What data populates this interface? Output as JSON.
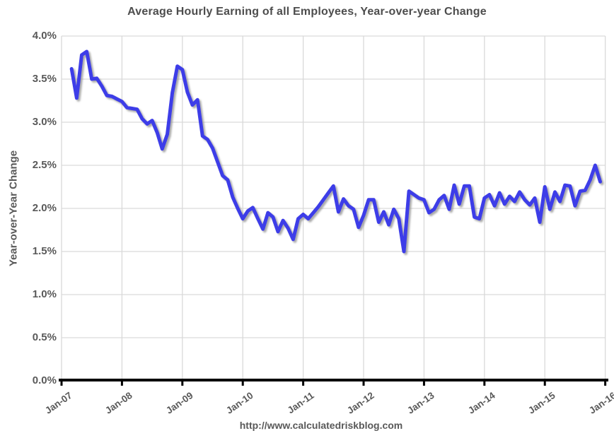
{
  "chart_data": {
    "type": "line",
    "title": "Average Hourly Earning of all Employees, Year-over-year Change",
    "ylabel": "Year-over-Year Change",
    "footer_url": "http://www.calculatedriskblog.com",
    "x_tick_labels": [
      "Jan-07",
      "Jan-08",
      "Jan-09",
      "Jan-10",
      "Jan-11",
      "Jan-12",
      "Jan-13",
      "Jan-14",
      "Jan-15",
      "Jan-16"
    ],
    "y_tick_labels": [
      "0.0%",
      "0.5%",
      "1.0%",
      "1.5%",
      "2.0%",
      "2.5%",
      "3.0%",
      "3.5%",
      "4.0%"
    ],
    "ylim": [
      0,
      4
    ],
    "y_tick_step": 0.5,
    "grid": true,
    "legend_position": "none",
    "line_color": "#3E3CE8",
    "grid_color": "#D9D9D9",
    "axis_color": "#000000",
    "text_color": "#595959",
    "series": [
      {
        "name": "Year-over-year change (%)",
        "x_start": "Mar-07",
        "x_end": "Dec-15",
        "frequency": "monthly",
        "unit": "%",
        "values": [
          3.62,
          3.28,
          3.78,
          3.82,
          3.5,
          3.51,
          3.42,
          3.31,
          3.3,
          3.27,
          3.24,
          3.17,
          3.16,
          3.15,
          3.04,
          2.98,
          3.02,
          2.88,
          2.69,
          2.86,
          3.34,
          3.65,
          3.61,
          3.35,
          3.2,
          3.26,
          2.84,
          2.8,
          2.7,
          2.54,
          2.38,
          2.33,
          2.13,
          2.0,
          1.88,
          1.97,
          2.01,
          1.88,
          1.76,
          1.95,
          1.9,
          1.73,
          1.86,
          1.77,
          1.64,
          1.88,
          1.93,
          1.88,
          1.95,
          2.02,
          2.1,
          2.18,
          2.26,
          1.96,
          2.11,
          2.03,
          1.99,
          1.78,
          1.92,
          2.1,
          2.1,
          1.84,
          1.96,
          1.81,
          1.99,
          1.88,
          1.5,
          2.2,
          2.16,
          2.12,
          2.1,
          1.95,
          1.99,
          2.1,
          2.15,
          1.99,
          2.27,
          2.05,
          2.26,
          2.26,
          1.9,
          1.88,
          2.12,
          2.16,
          2.03,
          2.18,
          2.05,
          2.14,
          2.08,
          2.19,
          2.1,
          2.04,
          2.12,
          1.84,
          2.25,
          1.99,
          2.19,
          2.08,
          2.27,
          2.26,
          2.03,
          2.2,
          2.21,
          2.33,
          2.5,
          2.31
        ]
      }
    ]
  }
}
